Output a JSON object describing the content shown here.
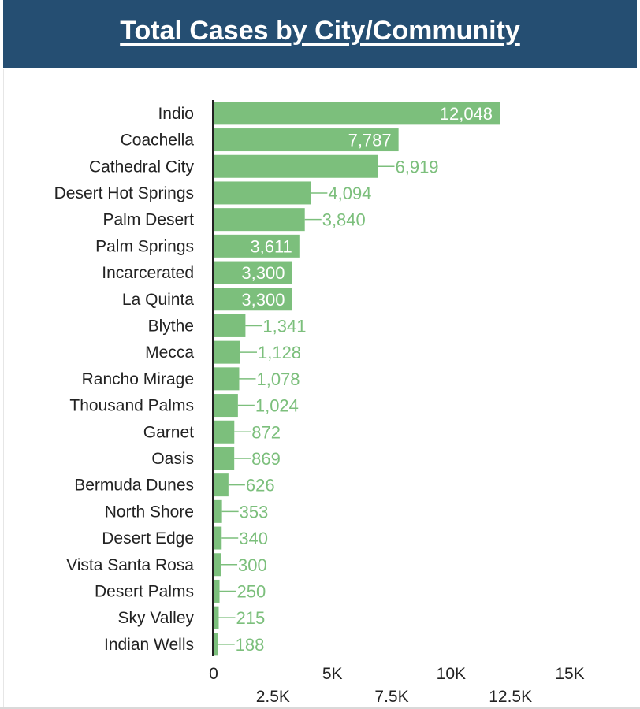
{
  "header": {
    "title": "Total Cases by City/Community"
  },
  "colors": {
    "header_bg": "#254e72",
    "bar": "#7cbf7c",
    "label_outside": "#7cbf7c",
    "label_inside": "#ffffff",
    "axis_text": "#222222"
  },
  "chart_data": {
    "type": "bar",
    "orientation": "horizontal",
    "title": "Total Cases by City/Community",
    "xlabel": "",
    "ylabel": "",
    "xlim": [
      0,
      15000
    ],
    "grid": false,
    "categories": [
      "Indio",
      "Coachella",
      "Cathedral City",
      "Desert Hot Springs",
      "Palm Desert",
      "Palm Springs",
      "Incarcerated",
      "La Quinta",
      "Blythe",
      "Mecca",
      "Rancho Mirage",
      "Thousand Palms",
      "Garnet",
      "Oasis",
      "Bermuda Dunes",
      "North Shore",
      "Desert Edge",
      "Vista Santa Rosa",
      "Desert Palms",
      "Sky Valley",
      "Indian Wells"
    ],
    "values": [
      12048,
      7787,
      6919,
      4094,
      3840,
      3611,
      3300,
      3300,
      1341,
      1128,
      1078,
      1024,
      872,
      869,
      626,
      353,
      340,
      300,
      250,
      215,
      188
    ],
    "data_labels": [
      "12,048",
      "7,787",
      "6,919",
      "4,094",
      "3,840",
      "3,611",
      "3,300",
      "3,300",
      "1,341",
      "1,128",
      "1,078",
      "1,024",
      "872",
      "869",
      "626",
      "353",
      "340",
      "300",
      "250",
      "215",
      "188"
    ],
    "label_inside": [
      true,
      true,
      false,
      false,
      false,
      true,
      true,
      true,
      false,
      false,
      false,
      false,
      false,
      false,
      false,
      false,
      false,
      false,
      false,
      false,
      false
    ],
    "x_ticks_major": [
      0,
      5000,
      10000,
      15000
    ],
    "x_tick_labels_major": [
      "0",
      "5K",
      "10K",
      "15K"
    ],
    "x_ticks_minor": [
      2500,
      7500,
      12500
    ],
    "x_tick_labels_minor": [
      "2.5K",
      "7.5K",
      "12.5K"
    ]
  }
}
